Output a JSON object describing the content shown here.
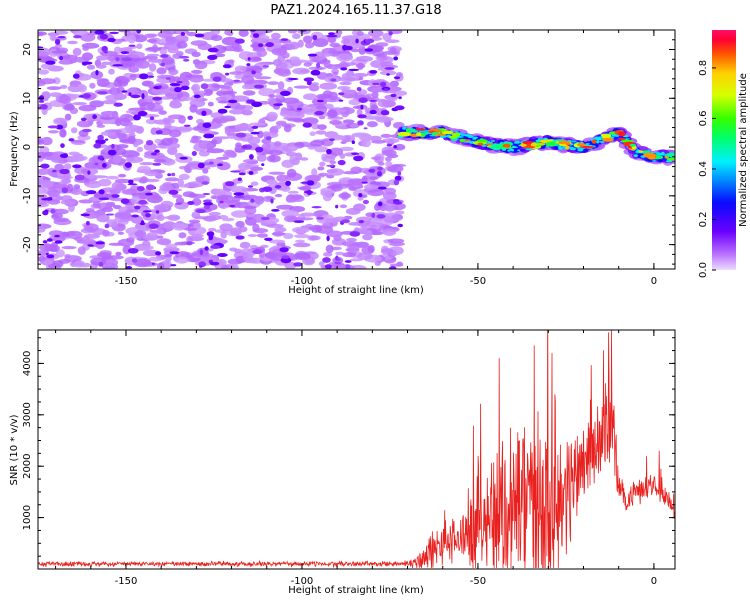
{
  "title": "PAZ1.2024.165.11.37.G18",
  "colors": {
    "snr_line": "#e8201e",
    "axis": "#000000",
    "background": "#ffffff"
  },
  "chart_data": [
    {
      "type": "heatmap",
      "title": "PAZ1.2024.165.11.37.G18",
      "xlabel": "Height of straight line (km)",
      "ylabel": "Frequency (Hz)",
      "xlim": [
        -175,
        6
      ],
      "ylim": [
        -25,
        24
      ],
      "xticks": [
        -150,
        -100,
        -50,
        0
      ],
      "yticks": [
        -20,
        -10,
        0,
        10,
        20
      ],
      "colorbar": {
        "label": "Normalized spectral amplitude",
        "range": [
          0.0,
          0.95
        ],
        "ticks": [
          "0.0",
          "0.2",
          "0.4",
          "0.6",
          "0.8"
        ],
        "colormap": "gist_rainbow (violet-blue-cyan-green-yellow-red-magenta)"
      },
      "regions": [
        {
          "x_range": [
            -175,
            -72
          ],
          "f_range": [
            -25,
            24
          ],
          "amplitude": 0.05,
          "description": "noise speckle"
        },
        {
          "x_range": [
            -72,
            6
          ],
          "f_center_at_x": [
            [
              -72,
              3
            ],
            [
              -60,
              3
            ],
            [
              -50,
              1
            ],
            [
              -40,
              0
            ],
            [
              -30,
              1
            ],
            [
              -20,
              0
            ],
            [
              -10,
              3
            ],
            [
              -5,
              -1
            ],
            [
              0,
              -2
            ],
            [
              6,
              -2
            ]
          ],
          "peak_amplitude": 0.9,
          "description": "Doppler trace"
        }
      ]
    },
    {
      "type": "line",
      "xlabel": "Height of straight line (km)",
      "ylabel": "SNR (10 * v/v)",
      "xlim": [
        -175,
        6
      ],
      "ylim": [
        0,
        4650
      ],
      "xticks": [
        -150,
        -100,
        -50,
        0
      ],
      "yticks": [
        1000,
        2000,
        3000,
        4000
      ],
      "series": [
        {
          "envelope_x": [
            -175,
            -72,
            -68,
            -65,
            -60,
            -55,
            -50,
            -45,
            -40,
            -35,
            -30,
            -25,
            -20,
            -15,
            -12,
            -10,
            -8,
            -5,
            0,
            3,
            6
          ],
          "envelope_base": [
            100,
            100,
            120,
            250,
            450,
            600,
            900,
            1100,
            1200,
            1300,
            1400,
            1400,
            2200,
            2500,
            3000,
            1600,
            1300,
            1500,
            1700,
            1500,
            1000
          ],
          "envelope_amp": [
            60,
            60,
            150,
            500,
            500,
            600,
            1200,
            1700,
            2500,
            2500,
            2400,
            1500,
            1200,
            900,
            1600,
            300,
            300,
            300,
            300,
            300,
            300
          ],
          "peaks": [
            {
              "x": -50,
              "y": 2200
            },
            {
              "x": -44,
              "y": 4100
            },
            {
              "x": -34,
              "y": 4350
            },
            {
              "x": -29,
              "y": 4200
            },
            {
              "x": -12,
              "y": 4650
            },
            {
              "x": 1.5,
              "y": 2300
            }
          ]
        }
      ]
    }
  ]
}
